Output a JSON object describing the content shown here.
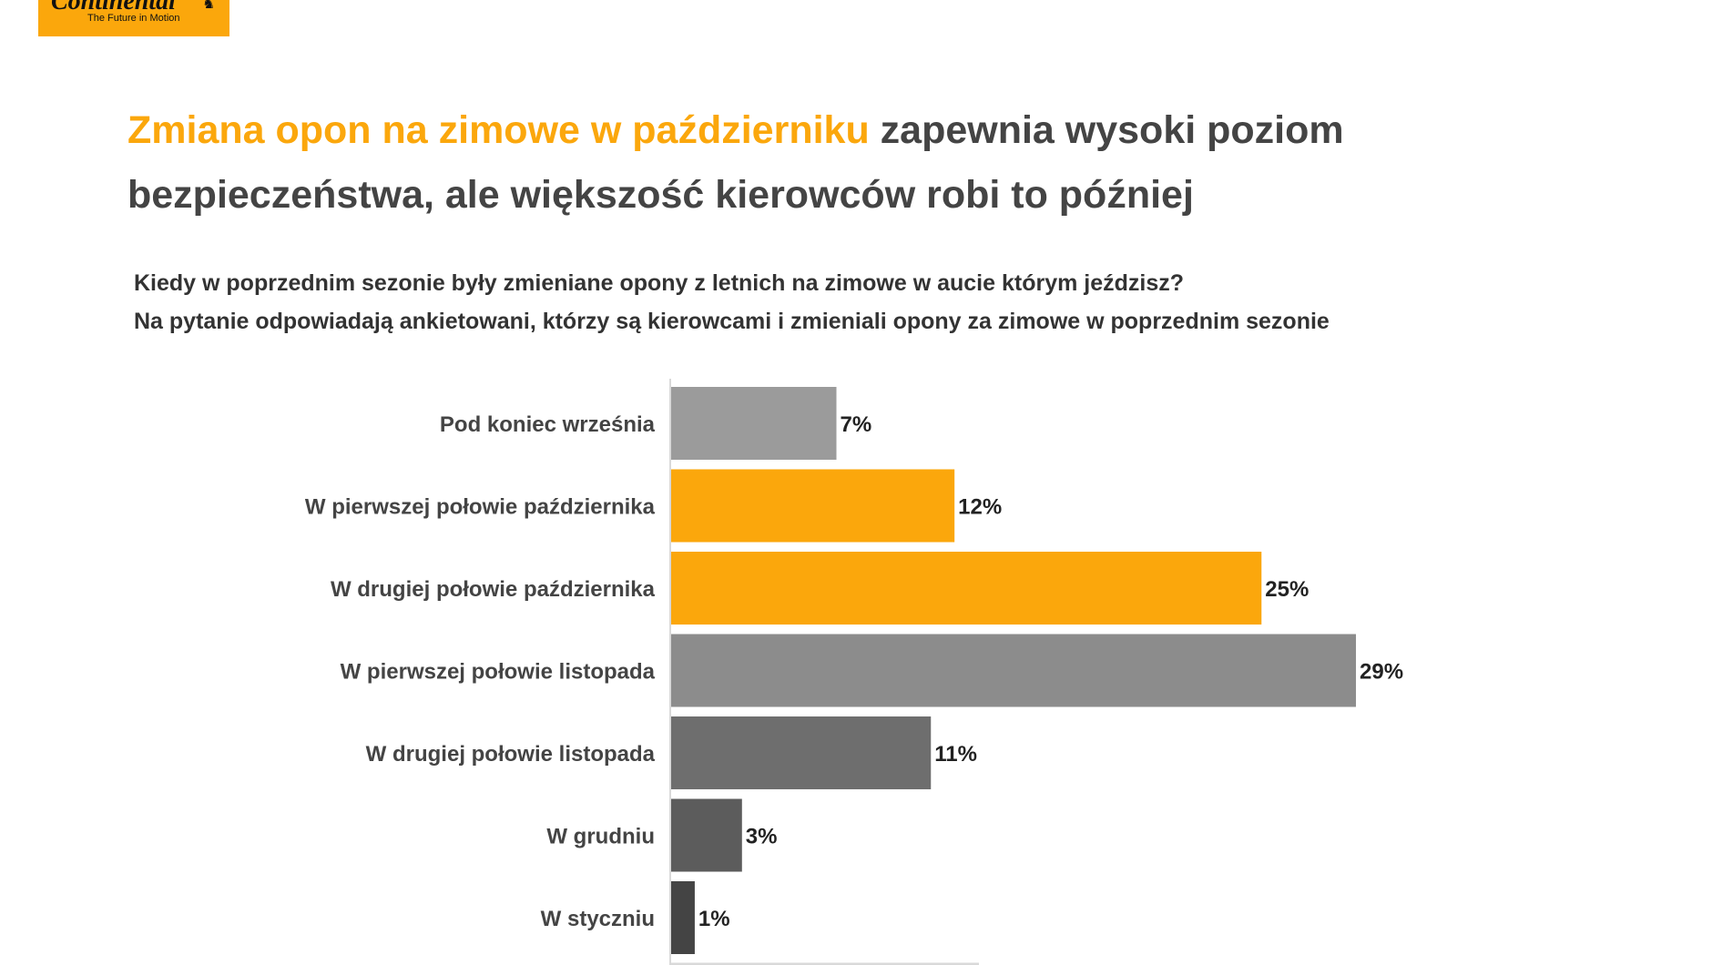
{
  "logo": {
    "brand": "Continental",
    "slogan": "The Future in Motion"
  },
  "headline": {
    "accent": "Zmiana opon na zimowe w październiku",
    "rest": " zapewnia wysoki poziom bezpieczeństwa, ale większość kierowców robi to później"
  },
  "question": {
    "line1": "Kiedy w poprzednim sezonie były zmieniane opony z letnich na zimowe w aucie którym jeździsz?",
    "line2": "Na pytanie odpowiadają ankietowani, którzy są kierowcami i zmieniali opony za zimowe w poprzednim sezonie"
  },
  "colors": {
    "accent": "#fba70c",
    "headline_text": "#444444"
  },
  "chart_data": {
    "type": "bar",
    "orientation": "horizontal",
    "categories": [
      "Pod koniec września",
      "W pierwszej połowie października",
      "W drugiej połowie października",
      "W pierwszej połowie listopada",
      "W drugiej połowie listopada",
      "W grudniu",
      "W styczniu"
    ],
    "values": [
      7,
      12,
      25,
      29,
      11,
      3,
      1
    ],
    "value_labels": [
      "7%",
      "12%",
      "25%",
      "29%",
      "11%",
      "3%",
      "1%"
    ],
    "colors": [
      "#9b9b9b",
      "#fba70c",
      "#fba70c",
      "#8c8c8c",
      "#6e6e6e",
      "#5c5c5c",
      "#444444"
    ],
    "xlim": [
      0,
      29
    ],
    "grid": false,
    "legend": "none"
  }
}
